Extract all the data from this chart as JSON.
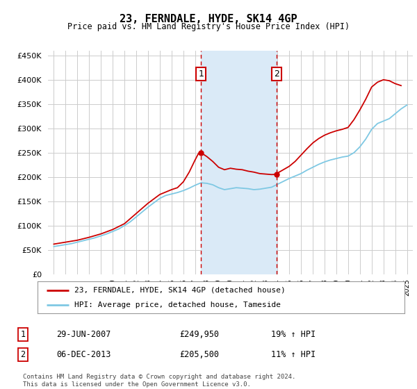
{
  "title": "23, FERNDALE, HYDE, SK14 4GP",
  "subtitle": "Price paid vs. HM Land Registry's House Price Index (HPI)",
  "legend_line1": "23, FERNDALE, HYDE, SK14 4GP (detached house)",
  "legend_line2": "HPI: Average price, detached house, Tameside",
  "footnote1": "Contains HM Land Registry data © Crown copyright and database right 2024.",
  "footnote2": "This data is licensed under the Open Government Licence v3.0.",
  "marker1_label": "1",
  "marker1_date": "29-JUN-2007",
  "marker1_price": "£249,950",
  "marker1_hpi": "19% ↑ HPI",
  "marker2_label": "2",
  "marker2_date": "06-DEC-2013",
  "marker2_price": "£205,500",
  "marker2_hpi": "11% ↑ HPI",
  "hpi_color": "#7ec8e3",
  "price_color": "#cc0000",
  "marker_vline_color": "#cc0000",
  "shade_color": "#daeaf7",
  "background_color": "#ffffff",
  "grid_color": "#cccccc",
  "ylim": [
    0,
    460000
  ],
  "yticks": [
    0,
    50000,
    100000,
    150000,
    200000,
    250000,
    300000,
    350000,
    400000,
    450000
  ],
  "xlim_start": 1994.5,
  "xlim_end": 2025.5,
  "marker1_x": 2007.5,
  "marker2_x": 2013.92,
  "marker1_price_val": 249950,
  "marker2_price_val": 205500,
  "hpi_data_years": [
    1995,
    1995.5,
    1996,
    1996.5,
    1997,
    1997.5,
    1998,
    1998.5,
    1999,
    1999.5,
    2000,
    2000.5,
    2001,
    2001.5,
    2002,
    2002.5,
    2003,
    2003.5,
    2004,
    2004.5,
    2005,
    2005.5,
    2006,
    2006.5,
    2007,
    2007.5,
    2008,
    2008.5,
    2009,
    2009.5,
    2010,
    2010.5,
    2011,
    2011.5,
    2012,
    2012.5,
    2013,
    2013.5,
    2014,
    2014.5,
    2015,
    2015.5,
    2016,
    2016.5,
    2017,
    2017.5,
    2018,
    2018.5,
    2019,
    2019.5,
    2020,
    2020.5,
    2021,
    2021.5,
    2022,
    2022.5,
    2023,
    2023.5,
    2024,
    2024.5,
    2025
  ],
  "hpi_data_values": [
    57000,
    59000,
    61000,
    63000,
    66000,
    69000,
    72000,
    75000,
    79000,
    83000,
    88000,
    93000,
    100000,
    108000,
    118000,
    128000,
    138000,
    147000,
    156000,
    162000,
    165000,
    168000,
    172000,
    177000,
    183000,
    188000,
    187000,
    184000,
    178000,
    174000,
    176000,
    178000,
    177000,
    176000,
    174000,
    175000,
    177000,
    179000,
    185000,
    191000,
    197000,
    202000,
    207000,
    214000,
    220000,
    226000,
    231000,
    235000,
    238000,
    241000,
    243000,
    250000,
    262000,
    278000,
    298000,
    310000,
    315000,
    320000,
    330000,
    340000,
    348000
  ],
  "price_data_years": [
    1995,
    1996,
    1997,
    1998,
    1999,
    2000,
    2001,
    2002,
    2003,
    2004,
    2005,
    2005.5,
    2006,
    2006.5,
    2007,
    2007.3,
    2007.5,
    2008,
    2008.5,
    2009,
    2009.5,
    2010,
    2010.5,
    2011,
    2011.5,
    2012,
    2012.5,
    2013,
    2013.5,
    2013.92,
    2014,
    2014.5,
    2015,
    2015.5,
    2016,
    2016.5,
    2017,
    2017.5,
    2018,
    2018.5,
    2019,
    2019.5,
    2020,
    2020.5,
    2021,
    2021.5,
    2022,
    2022.5,
    2023,
    2023.5,
    2024,
    2024.5
  ],
  "price_data_values": [
    62000,
    66000,
    70000,
    76000,
    83000,
    92000,
    104000,
    125000,
    146000,
    164000,
    174000,
    178000,
    190000,
    210000,
    235000,
    249000,
    249950,
    242000,
    232000,
    220000,
    215000,
    218000,
    216000,
    215000,
    212000,
    210000,
    207000,
    206000,
    205000,
    205500,
    208000,
    215000,
    222000,
    232000,
    245000,
    258000,
    270000,
    279000,
    286000,
    291000,
    295000,
    298000,
    302000,
    318000,
    338000,
    360000,
    385000,
    395000,
    400000,
    398000,
    392000,
    388000
  ]
}
